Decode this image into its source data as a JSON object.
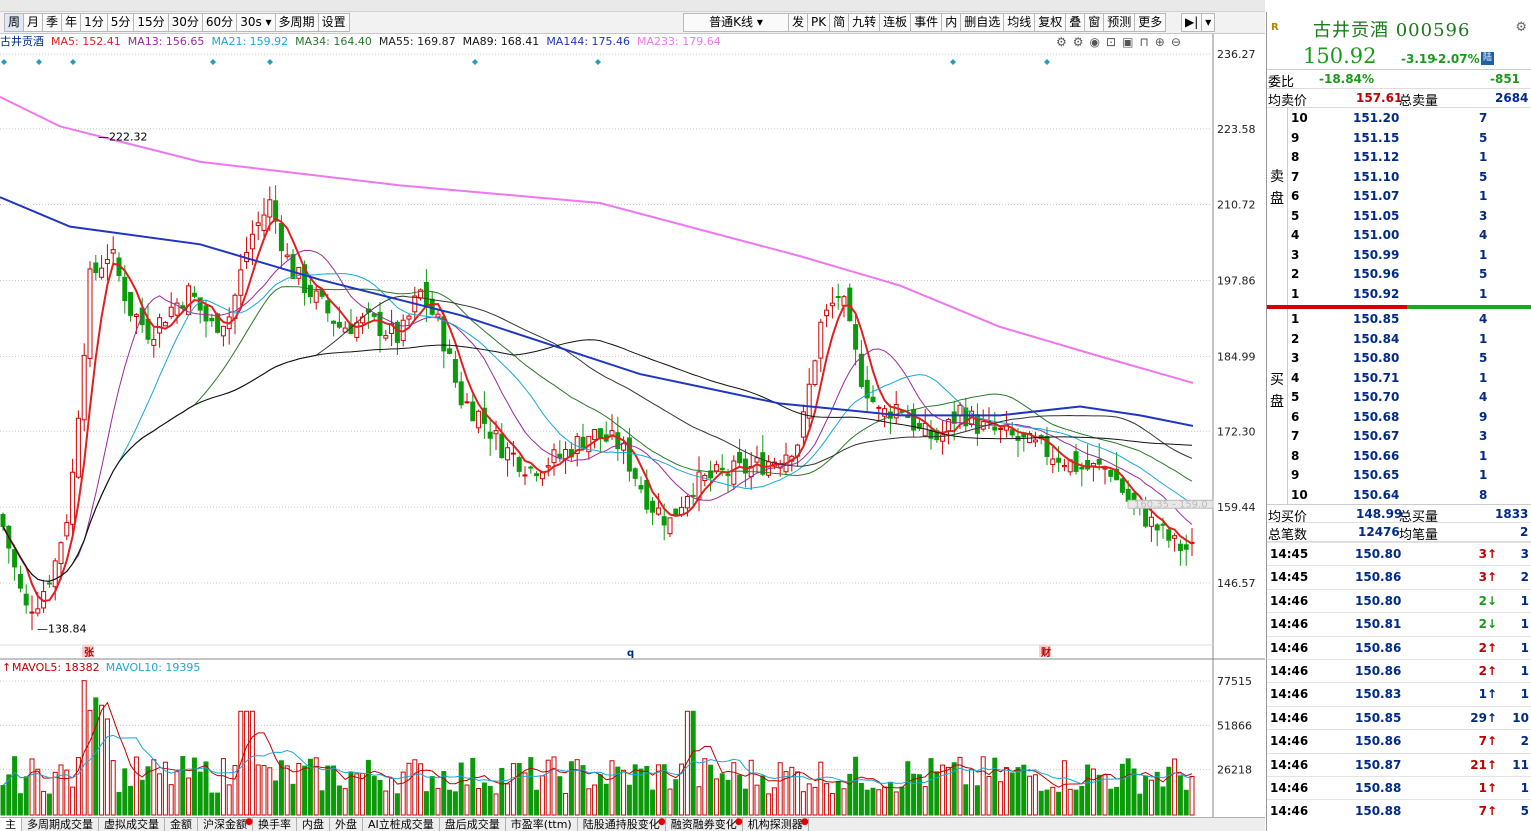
{
  "toolbar": {
    "periods": [
      "周",
      "月",
      "季",
      "年",
      "1分",
      "5分",
      "15分",
      "30分",
      "60分",
      "30s",
      "多周期",
      "设置"
    ],
    "active_period": "周",
    "ktype": "普通K线",
    "tools": [
      "发",
      "PK",
      "简",
      "九转",
      "连板",
      "事件",
      "内",
      "删自选",
      "均线",
      "复权",
      "叠",
      "窗",
      "预测",
      "更多"
    ]
  },
  "ma_legend": {
    "stock": "古井贡酒",
    "items": [
      {
        "label": "MA5: 152.41",
        "color": "#e02020"
      },
      {
        "label": "MA13: 156.65",
        "color": "#9b2b9b"
      },
      {
        "label": "MA21: 159.92",
        "color": "#18a8d8"
      },
      {
        "label": "MA34: 164.40",
        "color": "#2a7a2a"
      },
      {
        "label": "MA55: 169.87",
        "color": "#222222"
      },
      {
        "label": "MA89: 168.41",
        "color": "#111111"
      },
      {
        "label": "MA144: 175.46",
        "color": "#2035c0"
      },
      {
        "label": "MA233: 179.64",
        "color": "#ee77ee"
      }
    ]
  },
  "price_axis": [
    "236.27",
    "223.58",
    "210.72",
    "197.86",
    "184.99",
    "172.30",
    "159.44",
    "146.57"
  ],
  "price_annotations": {
    "high": "222.32",
    "low": "138.84",
    "dashed": "160.35 - 159.0"
  },
  "event_markers": {
    "left": "张",
    "mid": "q",
    "right": "财"
  },
  "volume": {
    "legend": [
      {
        "label": "MAVOL5: 18382",
        "color": "#c00000"
      },
      {
        "label": "MAVOL10: 19395",
        "color": "#18a8d8"
      }
    ],
    "axis": [
      "77515",
      "51866",
      "26218"
    ]
  },
  "bottom_tabs": [
    "多周期成交量",
    "虚拟成交量",
    "金额",
    "沪深金额",
    "换手率",
    "内盘",
    "外盘",
    "AI立桩成交量",
    "盘后成交量",
    "市盈率(ttm)",
    "陆股通持股变化",
    "融资融券变化",
    "机构探测器"
  ],
  "bottom_tabs_with_dot": [
    "沪深金额",
    "陆股通持股变化",
    "融资融券变化",
    "机构探测器"
  ],
  "quote": {
    "name": "古井贡酒 000596",
    "badge": "R",
    "price": "150.92",
    "change": "-3.19",
    "change_pct": "-2.07%",
    "market_badge": "陆",
    "weibi_label": "委比",
    "weibi": "-18.84%",
    "weicha": "-851",
    "avg_sell_label": "均卖价",
    "avg_sell": "157.61",
    "total_sell_label": "总卖量",
    "total_sell": "2684",
    "avg_buy_label": "均买价",
    "avg_buy": "148.99",
    "total_buy_label": "总买量",
    "total_buy": "1833",
    "total_trades_label": "总笔数",
    "total_trades": "12476",
    "avg_trade_label": "均笔量",
    "avg_trade": "2",
    "sell_side_label": [
      "卖",
      "盘"
    ],
    "buy_side_label": [
      "买",
      "盘"
    ]
  },
  "asks": [
    {
      "level": "10",
      "price": "151.20",
      "qty": "7"
    },
    {
      "level": "9",
      "price": "151.15",
      "qty": "5"
    },
    {
      "level": "8",
      "price": "151.12",
      "qty": "1"
    },
    {
      "level": "7",
      "price": "151.10",
      "qty": "5"
    },
    {
      "level": "6",
      "price": "151.07",
      "qty": "1"
    },
    {
      "level": "5",
      "price": "151.05",
      "qty": "3"
    },
    {
      "level": "4",
      "price": "151.00",
      "qty": "4"
    },
    {
      "level": "3",
      "price": "150.99",
      "qty": "1"
    },
    {
      "level": "2",
      "price": "150.96",
      "qty": "5"
    },
    {
      "level": "1",
      "price": "150.92",
      "qty": "1"
    }
  ],
  "bids": [
    {
      "level": "1",
      "price": "150.85",
      "qty": "4"
    },
    {
      "level": "2",
      "price": "150.84",
      "qty": "1"
    },
    {
      "level": "3",
      "price": "150.80",
      "qty": "5"
    },
    {
      "level": "4",
      "price": "150.71",
      "qty": "1"
    },
    {
      "level": "5",
      "price": "150.70",
      "qty": "4"
    },
    {
      "level": "6",
      "price": "150.68",
      "qty": "9"
    },
    {
      "level": "7",
      "price": "150.67",
      "qty": "3"
    },
    {
      "level": "8",
      "price": "150.66",
      "qty": "1"
    },
    {
      "level": "9",
      "price": "150.65",
      "qty": "1"
    },
    {
      "level": "10",
      "price": "150.64",
      "qty": "8"
    }
  ],
  "ticks": [
    {
      "time": "14:45",
      "price": "150.80",
      "vol": "3",
      "dir": "up",
      "n": "3"
    },
    {
      "time": "14:45",
      "price": "150.86",
      "vol": "3",
      "dir": "up",
      "n": "2"
    },
    {
      "time": "14:46",
      "price": "150.80",
      "vol": "2",
      "dir": "down",
      "n": "1"
    },
    {
      "time": "14:46",
      "price": "150.81",
      "vol": "2",
      "dir": "down",
      "n": "1"
    },
    {
      "time": "14:46",
      "price": "150.86",
      "vol": "2",
      "dir": "up",
      "n": "1"
    },
    {
      "time": "14:46",
      "price": "150.86",
      "vol": "2",
      "dir": "up",
      "n": "1"
    },
    {
      "time": "14:46",
      "price": "150.83",
      "vol": "1",
      "dir": "neutral",
      "n": "1"
    },
    {
      "time": "14:46",
      "price": "150.85",
      "vol": "29",
      "dir": "neutral",
      "n": "10"
    },
    {
      "time": "14:46",
      "price": "150.86",
      "vol": "7",
      "dir": "up",
      "n": "2"
    },
    {
      "time": "14:46",
      "price": "150.87",
      "vol": "21",
      "dir": "up",
      "n": "11"
    },
    {
      "time": "14:46",
      "price": "150.88",
      "vol": "1",
      "dir": "up",
      "n": "1"
    },
    {
      "time": "14:46",
      "price": "150.88",
      "vol": "7",
      "dir": "up",
      "n": "5"
    }
  ],
  "colors": {
    "up": "#c00000",
    "down": "#1a9a1a",
    "neutral": "#000000"
  }
}
